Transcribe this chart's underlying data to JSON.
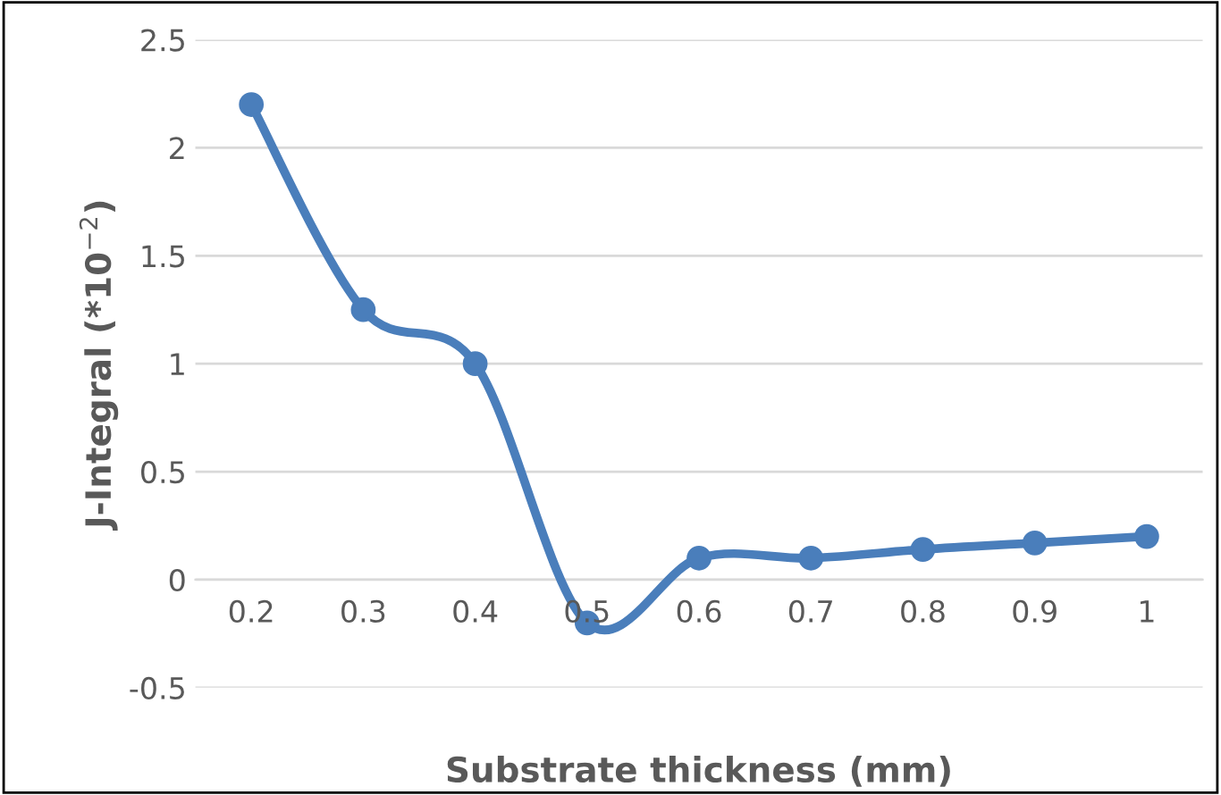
{
  "chart_data": {
    "type": "line",
    "xlabel": "Substrate thickness (mm)",
    "ylabel": "J-Integral (*10$^{−2}$)",
    "categories": [
      "0.2",
      "0.3",
      "0.4",
      "0.5",
      "0.6",
      "0.7",
      "0.8",
      "0.9",
      "1"
    ],
    "series": [
      {
        "color": "#4a7ebb",
        "values": [
          2.2,
          1.25,
          1.0,
          -0.2,
          0.1,
          0.1,
          0.14,
          0.17,
          0.2
        ]
      }
    ],
    "ylim": [
      -0.5,
      2.5
    ],
    "yticks": [
      {
        "value": -0.5,
        "label": "-0.5"
      },
      0,
      0.5,
      1,
      1.5,
      2,
      2.5
    ],
    "grid": "y",
    "marker": "circle",
    "line_style": "solid",
    "legend": false
  }
}
